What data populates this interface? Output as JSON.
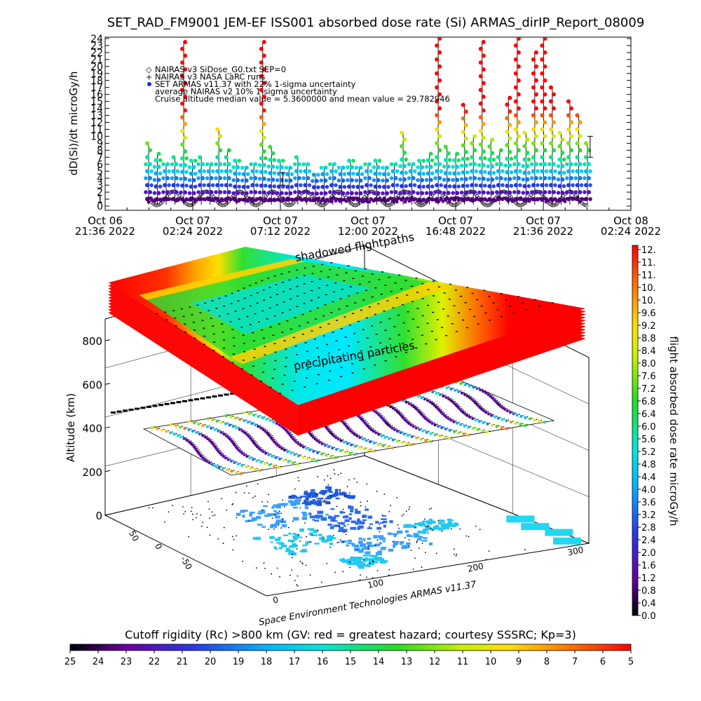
{
  "title": "SET_RAD_FM9001  JEM-EF ISS001 absorbed dose rate (Si) ARMAS_dirIP_Report_08009",
  "chart_data": [
    {
      "type": "scatter",
      "title": "SET_RAD_FM9001  JEM-EF ISS001 absorbed dose rate (Si) ARMAS_dirIP_Report_08009",
      "ylabel": "dD(Si)/dt microGy/h",
      "ylim": [
        0,
        24
      ],
      "y_ticks": [
        "0",
        "1",
        "2",
        "3",
        "4",
        "5",
        "6",
        "7",
        "8",
        "9",
        "10",
        "11",
        "12",
        "13",
        "14",
        "15",
        "16",
        "17",
        "18",
        "19",
        "20",
        "21",
        "22",
        "23",
        "24"
      ],
      "x_ticks": [
        {
          "date": "Oct 06",
          "time": "21:36 2022",
          "value": "2022-10-06T21:36"
        },
        {
          "date": "Oct 07",
          "time": "02:24 2022",
          "value": "2022-10-07T02:24"
        },
        {
          "date": "Oct 07",
          "time": "07:12 2022",
          "value": "2022-10-07T07:12"
        },
        {
          "date": "Oct 07",
          "time": "12:00 2022",
          "value": "2022-10-07T12:00"
        },
        {
          "date": "Oct 07",
          "time": "16:48 2022",
          "value": "2022-10-07T16:48"
        },
        {
          "date": "Oct 07",
          "time": "21:36 2022",
          "value": "2022-10-07T21:36"
        },
        {
          "date": "Oct 08",
          "time": "02:24 2022",
          "value": "2022-10-08T02:24"
        }
      ],
      "legend": [
        {
          "symbol": "◇",
          "text": "NAIRAS v3 SiDose_G0.txt SEP=0"
        },
        {
          "symbol": "+",
          "text": "NAIRAS v3 NASA LaRC runs"
        },
        {
          "symbol": "●",
          "text": "SET ARMAS v11.37 with 22% 1-sigma uncertainty"
        },
        {
          "symbol": "",
          "text": "average NAIRAS v2 10% 1-sigma uncertainty"
        },
        {
          "symbol": "",
          "text": "Cruise altitude median value = 5.3600000 and mean value = 29.782946"
        }
      ],
      "legend_position": "top-left",
      "series": [
        {
          "name": "SET ARMAS v11.37 with 22% 1-sigma uncertainty",
          "peaks": [
            9.0,
            7.5,
            6.0,
            7.0,
            23.5,
            6.5,
            7.0,
            6.0,
            11.0,
            8.0,
            6.5,
            5.5,
            6.0,
            23.5,
            8.5,
            6.5,
            5.5,
            7.0,
            6.0,
            4.5,
            5.5,
            6.0,
            5.5,
            6.5,
            5.5,
            6.0,
            6.5,
            5.5,
            6.0,
            10.5,
            6.0,
            6.5,
            7.5,
            24.0,
            8.5,
            7.5,
            14.5,
            10.0,
            23.5,
            9.5,
            8.0,
            15.5,
            24.0,
            10.5,
            22.0,
            24.0,
            17.0,
            10.5,
            15.0,
            13.0,
            9.0
          ]
        },
        {
          "name": "NAIRAS v3 SiDose_G0.txt SEP=0",
          "range": [
            0.0,
            2.2
          ]
        }
      ],
      "uncertainty_bars": [
        {
          "x": "2022-10-07T07:20",
          "low": 3.0,
          "high": 4.8
        },
        {
          "x": "2022-10-08T00:10",
          "low": 7.0,
          "high": 10.0
        }
      ],
      "grid": false
    },
    {
      "type": "scatter",
      "zlabel": "Altitude (km)",
      "zlim": [
        0,
        900
      ],
      "z_ticks": [
        "0",
        "200",
        "400",
        "600",
        "800"
      ],
      "latitude_ticks": [
        "-50",
        "0",
        "50"
      ],
      "longitude_ticks": [
        "0",
        "100",
        "200",
        "300"
      ],
      "annotations": [
        "shadowed flightpaths",
        "precipitating particles"
      ],
      "footer": "Space Environment Technologies ARMAS v11.37",
      "colorbar_right": {
        "label": "flight absorbed dose rate microGy/h",
        "ticks": [
          "12.",
          "11.",
          "11.",
          "10.",
          "10.",
          "9.6",
          "9.2",
          "8.8",
          "8.4",
          "8.0",
          "7.6",
          "7.2",
          "6.8",
          "6.4",
          "6.0",
          "5.6",
          "5.2",
          "4.8",
          "4.4",
          "4.0",
          "3.6",
          "3.2",
          "2.8",
          "2.4",
          "2.0",
          "1.6",
          "1.2",
          "0.8",
          "0.4",
          "0.0"
        ],
        "range": [
          0,
          12
        ]
      },
      "colorbar_bottom": {
        "title": "Cutoff rigidity (Rc) >800 km (GV: red = greatest hazard; courtesy SSSRC; Kp=3)",
        "ticks": [
          "25",
          "24",
          "23",
          "22",
          "21",
          "20",
          "19",
          "18",
          "17",
          "16",
          "15",
          "14",
          "13",
          "12",
          "11",
          "10",
          "9",
          "8",
          "7",
          "6",
          "5"
        ],
        "range": [
          25,
          5
        ]
      }
    }
  ]
}
